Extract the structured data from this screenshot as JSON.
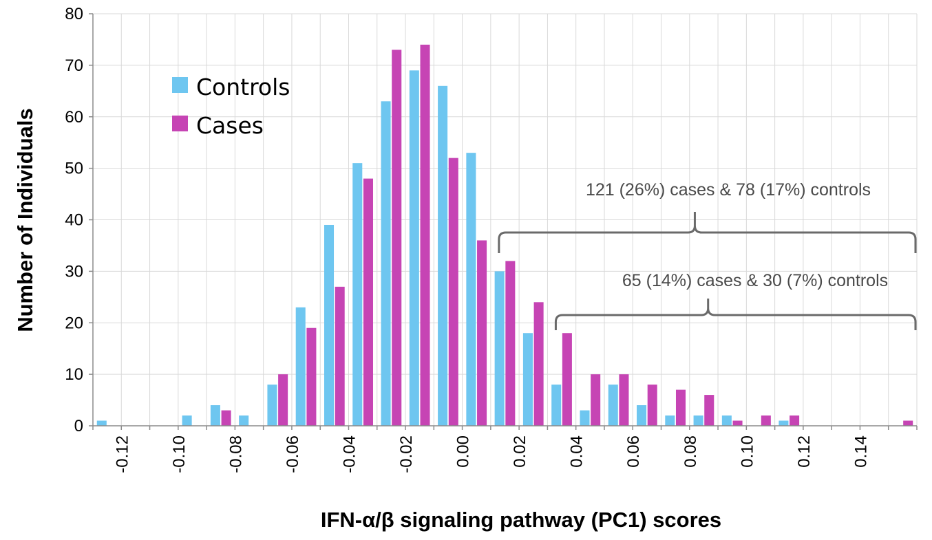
{
  "chart_data": {
    "type": "bar",
    "title": "",
    "xlabel": "IFN-α/β signaling pathway (PC1) scores",
    "ylabel": "Number of Individuals",
    "ylim": [
      0,
      80
    ],
    "yticks": [
      0,
      10,
      20,
      30,
      40,
      50,
      60,
      70,
      80
    ],
    "grid": true,
    "legend_position": "top-left",
    "x_tick_labels": [
      "-0.12",
      "-0.10",
      "-0.08",
      "-0.06",
      "-0.04",
      "-0.02",
      "0.00",
      "0.02",
      "0.04",
      "0.06",
      "0.08",
      "0.10",
      "0.12",
      "0.14"
    ],
    "categories": [
      "-0.125",
      "-0.115",
      "-0.105",
      "-0.095",
      "-0.085",
      "-0.075",
      "-0.065",
      "-0.055",
      "-0.045",
      "-0.035",
      "-0.025",
      "-0.015",
      "-0.005",
      "0.005",
      "0.015",
      "0.025",
      "0.035",
      "0.045",
      "0.055",
      "0.065",
      "0.075",
      "0.085",
      "0.095",
      "0.105",
      "0.115",
      "0.125",
      "0.135",
      "0.145",
      "0.155"
    ],
    "series": [
      {
        "name": "Controls",
        "color": "#6EC6F0",
        "values": [
          1,
          0,
          0,
          2,
          4,
          2,
          8,
          23,
          39,
          51,
          63,
          69,
          66,
          53,
          30,
          18,
          8,
          3,
          8,
          4,
          2,
          2,
          2,
          0,
          1,
          0,
          0,
          0,
          0
        ]
      },
      {
        "name": "Cases",
        "color": "#C644B4",
        "values": [
          0,
          0,
          0,
          0,
          3,
          0,
          10,
          19,
          27,
          48,
          73,
          74,
          52,
          36,
          32,
          24,
          18,
          10,
          10,
          8,
          7,
          6,
          1,
          2,
          2,
          0,
          0,
          0,
          1
        ]
      }
    ],
    "annotations": [
      {
        "text": "121 (26%) cases & 78 (17%) controls",
        "x_start": "0.015",
        "x_end": "0.155"
      },
      {
        "text": "65 (14%)  cases & 30 (7%) controls",
        "x_start": "0.035",
        "x_end": "0.155"
      }
    ]
  },
  "colors": {
    "gridline": "#d9d9d9",
    "axis": "#8c8c8c",
    "bracket": "#6a6a6a"
  }
}
